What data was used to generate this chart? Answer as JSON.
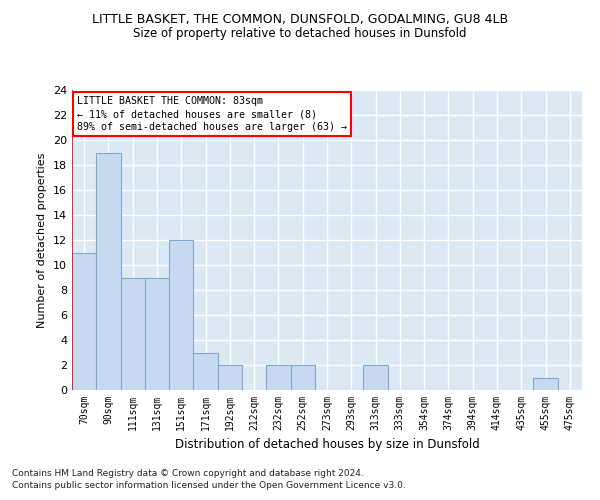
{
  "title": "LITTLE BASKET, THE COMMON, DUNSFOLD, GODALMING, GU8 4LB",
  "subtitle": "Size of property relative to detached houses in Dunsfold",
  "xlabel": "Distribution of detached houses by size in Dunsfold",
  "ylabel": "Number of detached properties",
  "categories": [
    "70sqm",
    "90sqm",
    "111sqm",
    "131sqm",
    "151sqm",
    "171sqm",
    "192sqm",
    "212sqm",
    "232sqm",
    "252sqm",
    "273sqm",
    "293sqm",
    "313sqm",
    "333sqm",
    "354sqm",
    "374sqm",
    "394sqm",
    "414sqm",
    "435sqm",
    "455sqm",
    "475sqm"
  ],
  "values": [
    11,
    19,
    9,
    9,
    12,
    3,
    2,
    0,
    2,
    2,
    0,
    0,
    2,
    0,
    0,
    0,
    0,
    0,
    0,
    1,
    0
  ],
  "bar_color": "#c6d9f0",
  "bar_edge_color": "#7faacd",
  "ylim": [
    0,
    24
  ],
  "yticks": [
    0,
    2,
    4,
    6,
    8,
    10,
    12,
    14,
    16,
    18,
    20,
    22,
    24
  ],
  "annotation_box_text": "LITTLE BASKET THE COMMON: 83sqm\n← 11% of detached houses are smaller (8)\n89% of semi-detached houses are larger (63) →",
  "annotation_box_color": "#ff0000",
  "background_color": "#dce9f5",
  "grid_color": "#ffffff",
  "footer_line1": "Contains HM Land Registry data © Crown copyright and database right 2024.",
  "footer_line2": "Contains public sector information licensed under the Open Government Licence v3.0."
}
